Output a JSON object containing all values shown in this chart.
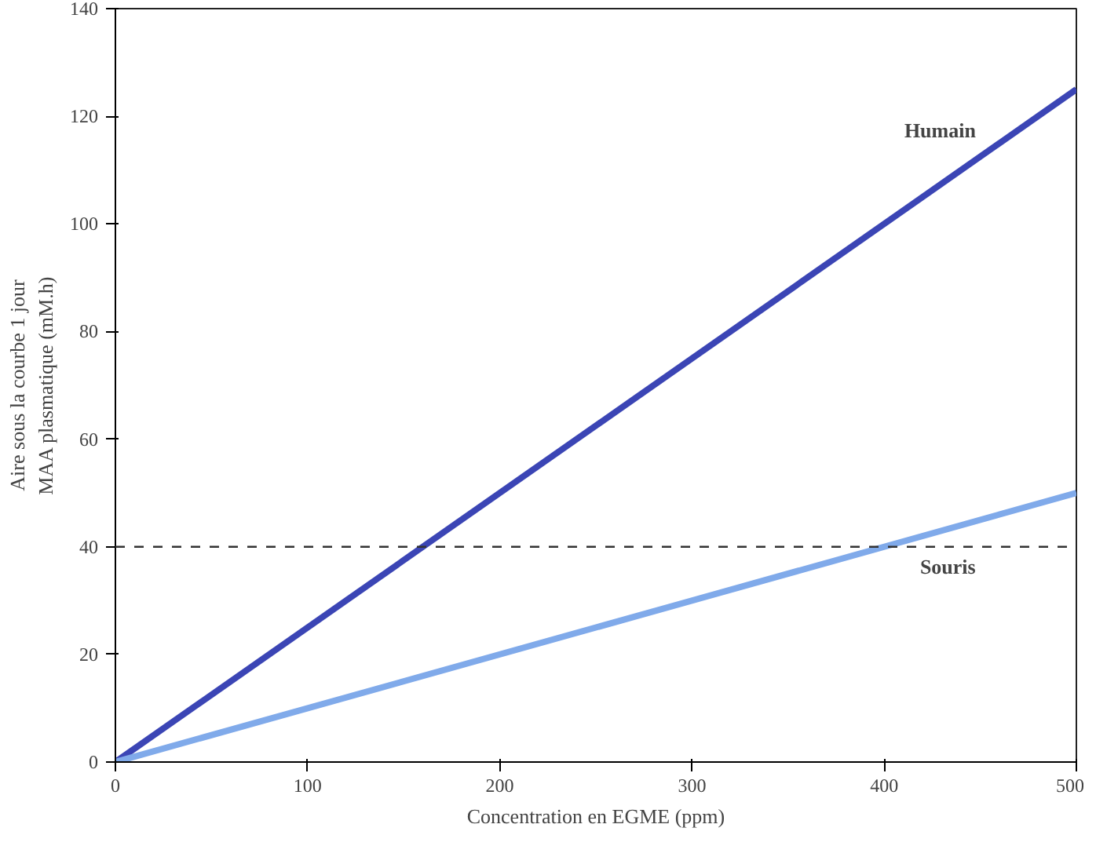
{
  "chart_data": {
    "type": "line",
    "xlabel": "Concentration en EGME (ppm)",
    "ylabel": "Aire sous la courbe 1 jour\nMAA plasmatique (mM.h)",
    "x": [
      0,
      500
    ],
    "series": [
      {
        "name": "Humain",
        "color": "#3b45b5",
        "values": [
          0,
          125
        ]
      },
      {
        "name": "Souris",
        "color": "#80aaea",
        "values": [
          0,
          50
        ]
      }
    ],
    "xlim": [
      0,
      500
    ],
    "xticks": [
      0,
      100,
      200,
      300,
      400,
      500
    ],
    "ylim": [
      0,
      140
    ],
    "yticks": [
      0,
      20,
      40,
      60,
      80,
      100,
      120,
      140
    ],
    "ref_lines": [
      {
        "axis": "y",
        "value": 40,
        "color": "#333333",
        "line_style": "dashed"
      }
    ],
    "grid": false,
    "marker": "none",
    "line_style": "solid"
  }
}
